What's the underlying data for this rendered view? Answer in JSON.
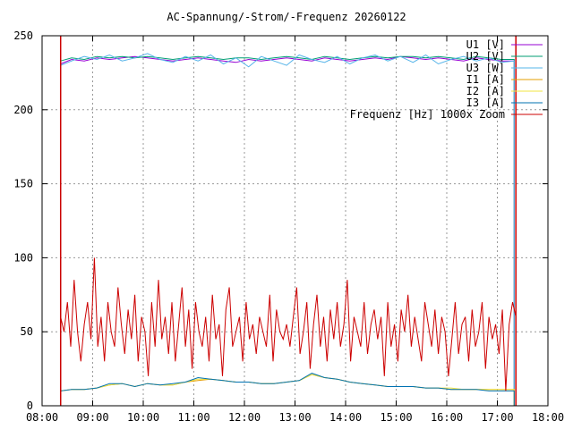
{
  "chart_data": {
    "type": "line",
    "title": "AC-Spannung/-Strom/-Frequenz 20260122",
    "xlabel": "",
    "ylabel": "",
    "x_ticks": [
      "08:00",
      "09:00",
      "10:00",
      "11:00",
      "12:00",
      "13:00",
      "14:00",
      "15:00",
      "16:00",
      "17:00",
      "18:00"
    ],
    "x_range": [
      "08:00",
      "18:00"
    ],
    "y_ticks": [
      0,
      50,
      100,
      150,
      200,
      250
    ],
    "ylim": [
      0,
      250
    ],
    "grid": true,
    "legend_position": "top-right",
    "series": [
      {
        "name": "U1 [V]",
        "color": "#9400d3",
        "x": [
          "08:22",
          "08:35",
          "08:50",
          "09:05",
          "09:20",
          "09:35",
          "09:50",
          "10:05",
          "10:20",
          "10:35",
          "10:50",
          "11:05",
          "11:20",
          "11:35",
          "11:50",
          "12:05",
          "12:20",
          "12:35",
          "12:50",
          "13:05",
          "13:20",
          "13:35",
          "13:50",
          "14:05",
          "14:20",
          "14:35",
          "14:50",
          "15:05",
          "15:20",
          "15:35",
          "15:50",
          "16:05",
          "16:20",
          "16:35",
          "16:50",
          "17:05",
          "17:20"
        ],
        "values": [
          231,
          234,
          233,
          235,
          234,
          235,
          236,
          235,
          234,
          233,
          234,
          235,
          234,
          233,
          232,
          234,
          233,
          234,
          235,
          234,
          233,
          235,
          234,
          233,
          234,
          235,
          234,
          236,
          235,
          234,
          235,
          234,
          233,
          235,
          234,
          233,
          233
        ]
      },
      {
        "name": "U2 [V]",
        "color": "#009e73",
        "x": [
          "08:22",
          "08:35",
          "08:50",
          "09:05",
          "09:20",
          "09:35",
          "09:50",
          "10:05",
          "10:20",
          "10:35",
          "10:50",
          "11:05",
          "11:20",
          "11:35",
          "11:50",
          "12:05",
          "12:20",
          "12:35",
          "12:50",
          "13:05",
          "13:20",
          "13:35",
          "13:50",
          "14:05",
          "14:20",
          "14:35",
          "14:50",
          "15:05",
          "15:20",
          "15:35",
          "15:50",
          "16:05",
          "16:20",
          "16:35",
          "16:50",
          "17:05",
          "17:20"
        ],
        "values": [
          233,
          235,
          234,
          236,
          235,
          236,
          235,
          236,
          235,
          234,
          235,
          236,
          235,
          234,
          235,
          235,
          234,
          235,
          236,
          235,
          234,
          236,
          235,
          234,
          235,
          236,
          235,
          236,
          236,
          235,
          236,
          235,
          234,
          236,
          235,
          234,
          234
        ]
      },
      {
        "name": "U3 [W]",
        "color": "#56b4e9",
        "x": [
          "08:22",
          "08:35",
          "08:50",
          "09:05",
          "09:20",
          "09:35",
          "09:50",
          "10:05",
          "10:20",
          "10:35",
          "10:50",
          "11:05",
          "11:20",
          "11:35",
          "11:50",
          "12:05",
          "12:20",
          "12:35",
          "12:50",
          "13:05",
          "13:20",
          "13:35",
          "13:50",
          "14:05",
          "14:20",
          "14:35",
          "14:50",
          "15:05",
          "15:20",
          "15:35",
          "15:50",
          "16:05",
          "16:20",
          "16:35",
          "16:50",
          "17:05",
          "17:20"
        ],
        "values": [
          230,
          233,
          236,
          234,
          237,
          233,
          235,
          238,
          234,
          232,
          236,
          233,
          237,
          231,
          235,
          229,
          236,
          233,
          230,
          237,
          234,
          232,
          236,
          231,
          235,
          237,
          233,
          236,
          232,
          237,
          231,
          234,
          236,
          233,
          235,
          232,
          233
        ]
      },
      {
        "name": "I1 [A]",
        "color": "#e69f00",
        "x": [
          "08:22",
          "08:35",
          "08:50",
          "09:05",
          "09:20",
          "09:35",
          "09:50",
          "10:05",
          "10:20",
          "10:35",
          "10:50",
          "11:05",
          "11:20",
          "11:35",
          "11:50",
          "12:05",
          "12:20",
          "12:35",
          "12:50",
          "13:05",
          "13:20",
          "13:35",
          "13:50",
          "14:05",
          "14:20",
          "14:35",
          "14:50",
          "15:05",
          "15:20",
          "15:35",
          "15:50",
          "16:05",
          "16:20",
          "16:35",
          "16:50",
          "17:05",
          "17:20"
        ],
        "values": [
          10,
          11,
          11,
          12,
          14,
          15,
          13,
          15,
          14,
          14,
          16,
          17,
          18,
          17,
          16,
          16,
          15,
          15,
          16,
          17,
          21,
          19,
          18,
          16,
          15,
          14,
          13,
          13,
          13,
          12,
          12,
          11,
          11,
          11,
          11,
          11,
          11
        ]
      },
      {
        "name": "I2 [A]",
        "color": "#f0e442",
        "x": [
          "08:22",
          "08:35",
          "08:50",
          "09:05",
          "09:20",
          "09:35",
          "09:50",
          "10:05",
          "10:20",
          "10:35",
          "10:50",
          "11:05",
          "11:20",
          "11:35",
          "11:50",
          "12:05",
          "12:20",
          "12:35",
          "12:50",
          "13:05",
          "13:20",
          "13:35",
          "13:50",
          "14:05",
          "14:20",
          "14:35",
          "14:50",
          "15:05",
          "15:20",
          "15:35",
          "15:50",
          "16:05",
          "16:20",
          "16:35",
          "16:50",
          "17:05",
          "17:20"
        ],
        "values": [
          10,
          11,
          11,
          12,
          14,
          15,
          13,
          15,
          14,
          14,
          16,
          18,
          18,
          17,
          16,
          16,
          15,
          15,
          16,
          17,
          21,
          19,
          18,
          16,
          15,
          14,
          13,
          13,
          13,
          12,
          12,
          12,
          11,
          11,
          11,
          11,
          11
        ]
      },
      {
        "name": "I3 [A]",
        "color": "#0072b2",
        "x": [
          "08:22",
          "08:35",
          "08:50",
          "09:05",
          "09:20",
          "09:35",
          "09:50",
          "10:05",
          "10:20",
          "10:35",
          "10:50",
          "11:05",
          "11:20",
          "11:35",
          "11:50",
          "12:05",
          "12:20",
          "12:35",
          "12:50",
          "13:05",
          "13:20",
          "13:35",
          "13:50",
          "14:05",
          "14:20",
          "14:35",
          "14:50",
          "15:05",
          "15:20",
          "15:35",
          "15:50",
          "16:05",
          "16:20",
          "16:35",
          "16:50",
          "17:05",
          "17:20"
        ],
        "values": [
          10,
          11,
          11,
          12,
          15,
          15,
          13,
          15,
          14,
          15,
          16,
          19,
          18,
          17,
          16,
          16,
          15,
          15,
          16,
          17,
          22,
          19,
          18,
          16,
          15,
          14,
          13,
          13,
          13,
          12,
          12,
          11,
          11,
          11,
          10,
          10,
          10
        ]
      },
      {
        "name": "Frequenz [Hz] 1000x Zoom",
        "color": "#cc0000",
        "x": [
          "08:22",
          "08:26",
          "08:30",
          "08:34",
          "08:38",
          "08:42",
          "08:46",
          "08:50",
          "08:54",
          "08:58",
          "09:02",
          "09:06",
          "09:10",
          "09:14",
          "09:18",
          "09:22",
          "09:26",
          "09:30",
          "09:34",
          "09:38",
          "09:42",
          "09:46",
          "09:50",
          "09:54",
          "09:58",
          "10:02",
          "10:06",
          "10:10",
          "10:14",
          "10:18",
          "10:22",
          "10:26",
          "10:30",
          "10:34",
          "10:38",
          "10:42",
          "10:46",
          "10:50",
          "10:54",
          "10:58",
          "11:02",
          "11:06",
          "11:10",
          "11:14",
          "11:18",
          "11:22",
          "11:26",
          "11:30",
          "11:34",
          "11:38",
          "11:42",
          "11:46",
          "11:50",
          "11:54",
          "11:58",
          "12:02",
          "12:06",
          "12:10",
          "12:14",
          "12:18",
          "12:22",
          "12:26",
          "12:30",
          "12:34",
          "12:38",
          "12:42",
          "12:46",
          "12:50",
          "12:54",
          "12:58",
          "13:02",
          "13:06",
          "13:10",
          "13:14",
          "13:18",
          "13:22",
          "13:26",
          "13:30",
          "13:34",
          "13:38",
          "13:42",
          "13:46",
          "13:50",
          "13:54",
          "13:58",
          "14:02",
          "14:06",
          "14:10",
          "14:14",
          "14:18",
          "14:22",
          "14:26",
          "14:30",
          "14:34",
          "14:38",
          "14:42",
          "14:46",
          "14:50",
          "14:54",
          "14:58",
          "15:02",
          "15:06",
          "15:10",
          "15:14",
          "15:18",
          "15:22",
          "15:26",
          "15:30",
          "15:34",
          "15:38",
          "15:42",
          "15:46",
          "15:50",
          "15:54",
          "15:58",
          "16:02",
          "16:06",
          "16:10",
          "16:14",
          "16:18",
          "16:22",
          "16:26",
          "16:30",
          "16:34",
          "16:38",
          "16:42",
          "16:46",
          "16:50",
          "16:54",
          "16:58",
          "17:02",
          "17:06",
          "17:10",
          "17:14",
          "17:18",
          "17:22"
        ],
        "values": [
          60,
          50,
          70,
          40,
          85,
          50,
          30,
          55,
          70,
          45,
          100,
          40,
          60,
          30,
          70,
          50,
          40,
          80,
          55,
          35,
          65,
          45,
          75,
          30,
          60,
          50,
          20,
          70,
          40,
          85,
          45,
          60,
          35,
          70,
          30,
          55,
          80,
          40,
          65,
          25,
          70,
          50,
          40,
          60,
          30,
          75,
          45,
          55,
          20,
          65,
          80,
          40,
          50,
          60,
          30,
          70,
          45,
          55,
          35,
          60,
          50,
          40,
          75,
          30,
          65,
          50,
          45,
          55,
          40,
          60,
          80,
          35,
          50,
          70,
          25,
          55,
          75,
          40,
          60,
          30,
          65,
          45,
          70,
          40,
          55,
          85,
          30,
          60,
          50,
          40,
          70,
          35,
          55,
          65,
          45,
          60,
          20,
          70,
          40,
          55,
          30,
          65,
          50,
          75,
          40,
          60,
          45,
          30,
          70,
          55,
          40,
          65,
          35,
          60,
          50,
          20,
          45,
          70,
          35,
          55,
          60,
          30,
          65,
          40,
          50,
          70,
          25,
          60,
          45,
          55,
          35,
          65,
          10,
          55,
          70,
          60
        ]
      }
    ]
  }
}
